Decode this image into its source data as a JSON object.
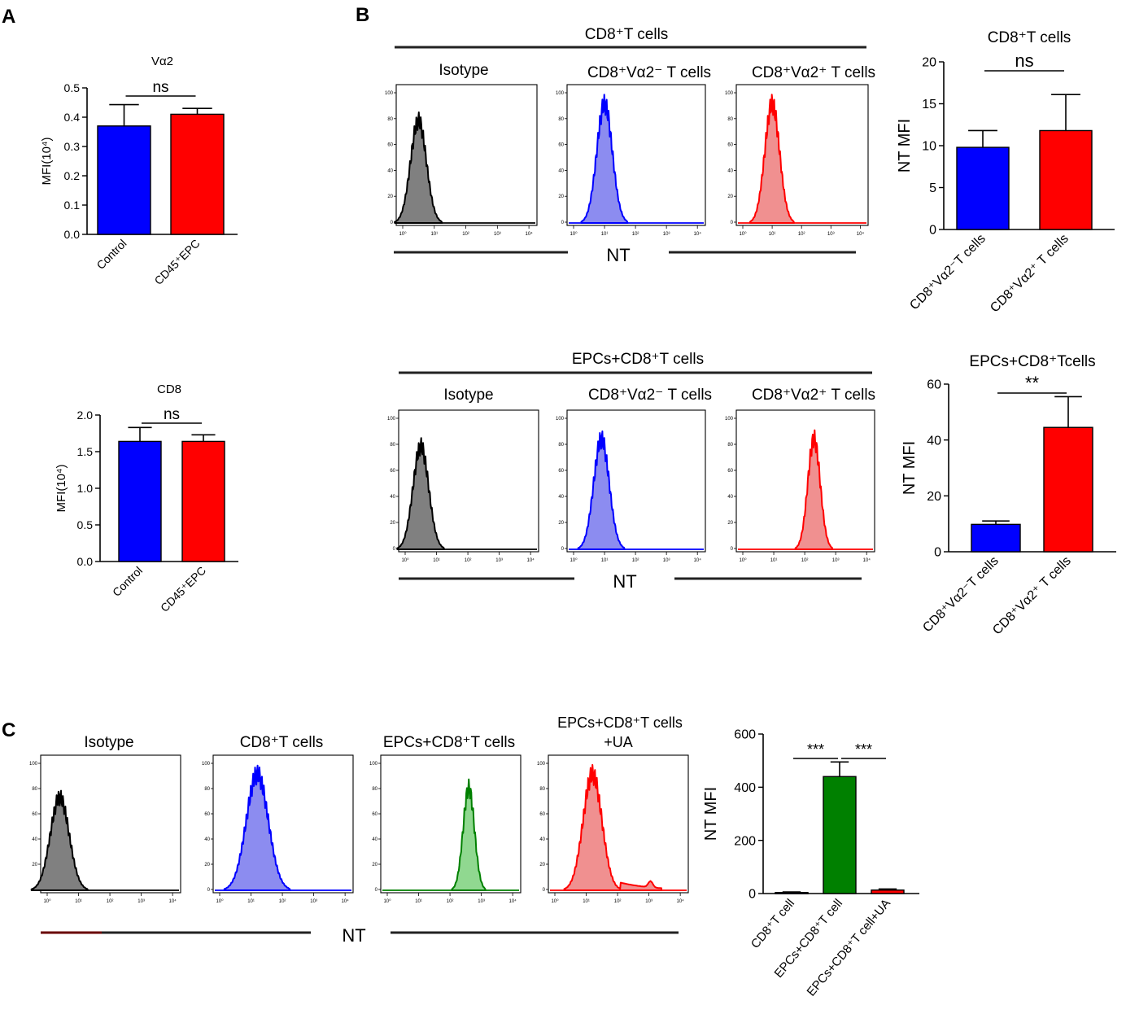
{
  "panels": {
    "A": {
      "label": "A"
    },
    "B": {
      "label": "B",
      "top_header": "CD8⁺T cells",
      "bottom_header": "EPCs+CD8⁺T cells",
      "axis_label": "NT"
    },
    "C": {
      "label": "C",
      "axis_label": "NT"
    }
  },
  "colors": {
    "blue": "#0000FF",
    "red": "#FF0000",
    "green": "#008000",
    "black": "#000000",
    "gray": "#808080",
    "lightblue": "#8c8cf0",
    "lightred": "#f09090",
    "lightgreen": "#90d890"
  },
  "chart_data": [
    {
      "id": "A_top",
      "type": "bar",
      "title": "Vα2",
      "ylabel": "MFI(10⁴)",
      "ylim": [
        0,
        0.5
      ],
      "yticks": [
        "0.0",
        "0.1",
        "0.2",
        "0.3",
        "0.4",
        "0.5"
      ],
      "categories": [
        "Control",
        "CD45⁺EPC"
      ],
      "values": [
        0.37,
        0.41
      ],
      "errors": [
        0.073,
        0.02
      ],
      "colors": [
        "#0000FF",
        "#FF0000"
      ],
      "annotations": [
        {
          "text": "ns",
          "between": [
            0,
            1
          ]
        }
      ]
    },
    {
      "id": "A_bottom",
      "type": "bar",
      "title": "CD8",
      "ylabel": "MFI(10⁴)",
      "ylim": [
        0,
        2.0
      ],
      "yticks": [
        "0.0",
        "0.5",
        "1.0",
        "1.5",
        "2.0"
      ],
      "categories": [
        "Control",
        "CD45⁺EPC"
      ],
      "values": [
        1.64,
        1.64
      ],
      "errors": [
        0.19,
        0.09
      ],
      "colors": [
        "#0000FF",
        "#FF0000"
      ],
      "annotations": [
        {
          "text": "ns",
          "between": [
            0,
            1
          ]
        }
      ]
    },
    {
      "id": "B_top_bar",
      "type": "bar",
      "title": "CD8⁺T cells",
      "ylabel": "NT MFI",
      "ylim": [
        0,
        20
      ],
      "yticks": [
        "0",
        "5",
        "10",
        "15",
        "20"
      ],
      "categories": [
        "CD8⁺Vα2⁻T cells",
        "CD8⁺Vα2⁺ T cells"
      ],
      "values": [
        9.8,
        11.8
      ],
      "errors": [
        2.0,
        4.3
      ],
      "colors": [
        "#0000FF",
        "#FF0000"
      ],
      "annotations": [
        {
          "text": "ns",
          "between": [
            0,
            1
          ]
        }
      ]
    },
    {
      "id": "B_bottom_bar",
      "type": "bar",
      "title": "EPCs+CD8⁺Tcells",
      "ylabel": "NT MFI",
      "ylim": [
        0,
        60
      ],
      "yticks": [
        "0",
        "20",
        "40",
        "60"
      ],
      "categories": [
        "CD8⁺Vα2⁻T cells",
        "CD8⁺Vα2⁺ T cells"
      ],
      "values": [
        9.8,
        44.5
      ],
      "errors": [
        1.2,
        11.0
      ],
      "colors": [
        "#0000FF",
        "#FF0000"
      ],
      "annotations": [
        {
          "text": "**",
          "between": [
            0,
            1
          ]
        }
      ]
    },
    {
      "id": "C_bar",
      "type": "bar",
      "title": "",
      "ylabel": "NT MFI",
      "ylim": [
        0,
        600
      ],
      "yticks": [
        "0",
        "200",
        "400",
        "600"
      ],
      "categories": [
        "CD8⁺T cell",
        "EPCs+CD8⁺T cell",
        "EPCs+CD8⁺T cell+UA"
      ],
      "values": [
        4,
        440,
        13
      ],
      "errors": [
        2,
        55,
        4
      ],
      "colors": [
        "#0000FF",
        "#008000",
        "#FF0000"
      ],
      "annotations": [
        {
          "text": "***",
          "between": [
            0,
            1
          ]
        },
        {
          "text": "***",
          "between": [
            1,
            2
          ]
        }
      ]
    },
    {
      "id": "histograms",
      "type": "area",
      "xscale": "log",
      "xticks": [
        "10⁰",
        "10¹",
        "10²",
        "10³",
        "10⁴"
      ],
      "yticks": [
        "0",
        "20",
        "40",
        "60",
        "80",
        "100"
      ],
      "panels": [
        {
          "title": "Isotype",
          "peak_log10": 0.5,
          "width": 0.25,
          "height": 86,
          "fill": "#808080",
          "stroke": "#000000"
        },
        {
          "title": "CD8⁺Vα2⁻ T cells",
          "peak_log10": 1.0,
          "width": 0.25,
          "height": 100,
          "fill": "#8c8cf0",
          "stroke": "#0000FF"
        },
        {
          "title": "CD8⁺Vα2⁺ T cells",
          "peak_log10": 1.0,
          "width": 0.25,
          "height": 100,
          "fill": "#f09090",
          "stroke": "#FF0000"
        },
        {
          "title": "Isotype",
          "peak_log10": 0.5,
          "width": 0.25,
          "height": 86,
          "fill": "#808080",
          "stroke": "#000000"
        },
        {
          "title": "CD8⁺Vα2⁻ T cells",
          "peak_log10": 0.9,
          "width": 0.25,
          "height": 92,
          "fill": "#8c8cf0",
          "stroke": "#0000FF"
        },
        {
          "title": "CD8⁺Vα2⁺ T cells",
          "peak_log10": 2.3,
          "width": 0.2,
          "height": 92,
          "fill": "#f09090",
          "stroke": "#FF0000"
        },
        {
          "title": "Isotype",
          "peak_log10": 0.4,
          "width": 0.3,
          "height": 80,
          "fill": "#808080",
          "stroke": "#000000"
        },
        {
          "title": "CD8⁺T cells",
          "peak_log10": 1.2,
          "width": 0.35,
          "height": 100,
          "fill": "#8c8cf0",
          "stroke": "#0000FF"
        },
        {
          "title": "EPCs+CD8⁺T cells",
          "peak_log10": 2.6,
          "width": 0.18,
          "height": 88,
          "fill": "#90d890",
          "stroke": "#008000"
        },
        {
          "title": "EPCs+CD8⁺T cells +UA",
          "peak_log10": 1.2,
          "width": 0.3,
          "height": 100,
          "fill": "#f09090",
          "stroke": "#FF0000"
        }
      ]
    }
  ]
}
